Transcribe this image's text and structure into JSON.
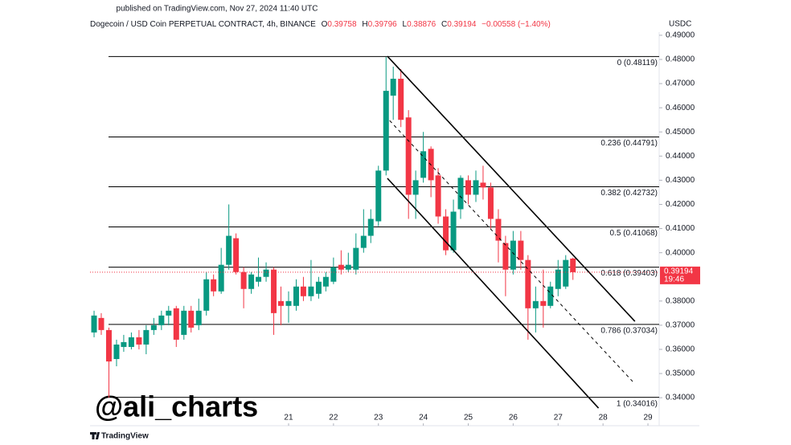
{
  "published": "published on TradingView.com, Nov 27, 2024 11:40 UTC",
  "watermark": "@ali_charts",
  "brand": "TradingView",
  "chart_data": {
    "type": "candlestick",
    "title": "Dogecoin / USD Coin PERPETUAL CONTRACT, 4h, BINANCE",
    "ohlc_header": {
      "o_label": "O",
      "open": "0.39758",
      "h_label": "H",
      "high": "0.39796",
      "l_label": "L",
      "low": "0.38876",
      "c_label": "C",
      "close": "0.39194",
      "change": "−0.00558 (−1.40%)"
    },
    "currency": "USDC",
    "last_price": 0.39194,
    "countdown": "19:46",
    "up_color": "#089981",
    "down_color": "#f23645",
    "x": [
      16.67,
      16.83,
      17,
      17.17,
      17.33,
      17.5,
      17.67,
      17.83,
      18,
      18.17,
      18.33,
      18.5,
      18.67,
      18.83,
      19,
      19.17,
      19.33,
      19.5,
      19.67,
      19.83,
      20,
      20.17,
      20.33,
      20.5,
      20.67,
      20.83,
      21,
      21.17,
      21.33,
      21.5,
      21.67,
      21.83,
      22,
      22.17,
      22.33,
      22.5,
      22.67,
      22.83,
      23,
      23.17,
      23.33,
      23.5,
      23.67,
      23.83,
      24,
      24.17,
      24.33,
      24.5,
      24.67,
      24.83,
      25,
      25.17,
      25.33,
      25.5,
      25.67,
      25.83,
      26,
      26.17,
      26.33,
      26.5,
      26.67,
      26.83,
      27,
      27.17,
      27.33
    ],
    "open": [
      0.367,
      0.373,
      0.368,
      0.356,
      0.361,
      0.361,
      0.365,
      0.362,
      0.368,
      0.37,
      0.374,
      0.377,
      0.366,
      0.376,
      0.37,
      0.376,
      0.389,
      0.384,
      0.395,
      0.406,
      0.392,
      0.385,
      0.388,
      0.39,
      0.393,
      0.38,
      0.378,
      0.378,
      0.386,
      0.382,
      0.383,
      0.386,
      0.388,
      0.395,
      0.393,
      0.393,
      0.402,
      0.407,
      0.413,
      0.434,
      0.465,
      0.472,
      0.456,
      0.424,
      0.431,
      0.443,
      0.432,
      0.415,
      0.401,
      0.418,
      0.43,
      0.424,
      0.429,
      0.427,
      0.414,
      0.404,
      0.393,
      0.405,
      0.397,
      0.377,
      0.38,
      0.378,
      0.385,
      0.386,
      0.39758
    ],
    "high": [
      0.376,
      0.375,
      0.369,
      0.364,
      0.366,
      0.367,
      0.368,
      0.37,
      0.373,
      0.376,
      0.378,
      0.378,
      0.378,
      0.378,
      0.381,
      0.392,
      0.391,
      0.402,
      0.42,
      0.408,
      0.394,
      0.392,
      0.398,
      0.396,
      0.394,
      0.386,
      0.384,
      0.389,
      0.39,
      0.397,
      0.39,
      0.392,
      0.398,
      0.401,
      0.4,
      0.408,
      0.418,
      0.418,
      0.436,
      0.481,
      0.477,
      0.476,
      0.459,
      0.434,
      0.45,
      0.444,
      0.435,
      0.418,
      0.422,
      0.432,
      0.432,
      0.434,
      0.436,
      0.429,
      0.418,
      0.407,
      0.409,
      0.409,
      0.399,
      0.386,
      0.393,
      0.388,
      0.397,
      0.399,
      0.39796
    ],
    "low": [
      0.365,
      0.366,
      0.34,
      0.353,
      0.359,
      0.36,
      0.36,
      0.358,
      0.366,
      0.368,
      0.37,
      0.361,
      0.364,
      0.367,
      0.368,
      0.374,
      0.382,
      0.383,
      0.393,
      0.391,
      0.377,
      0.383,
      0.386,
      0.388,
      0.366,
      0.37,
      0.371,
      0.376,
      0.38,
      0.38,
      0.381,
      0.384,
      0.387,
      0.391,
      0.392,
      0.391,
      0.4,
      0.404,
      0.411,
      0.432,
      0.455,
      0.452,
      0.414,
      0.414,
      0.429,
      0.423,
      0.412,
      0.399,
      0.4,
      0.414,
      0.42,
      0.421,
      0.422,
      0.41,
      0.396,
      0.382,
      0.391,
      0.393,
      0.364,
      0.367,
      0.369,
      0.377,
      0.382,
      0.385,
      0.38876
    ],
    "close": [
      0.374,
      0.368,
      0.355,
      0.362,
      0.363,
      0.365,
      0.362,
      0.368,
      0.37,
      0.374,
      0.376,
      0.364,
      0.376,
      0.369,
      0.376,
      0.389,
      0.384,
      0.395,
      0.407,
      0.392,
      0.385,
      0.391,
      0.39,
      0.393,
      0.375,
      0.378,
      0.38,
      0.386,
      0.382,
      0.386,
      0.388,
      0.39,
      0.394,
      0.393,
      0.395,
      0.402,
      0.407,
      0.414,
      0.434,
      0.467,
      0.472,
      0.455,
      0.424,
      0.43,
      0.442,
      0.43,
      0.415,
      0.401,
      0.417,
      0.431,
      0.424,
      0.43,
      0.427,
      0.414,
      0.405,
      0.393,
      0.405,
      0.397,
      0.377,
      0.38,
      0.378,
      0.386,
      0.393,
      0.397,
      0.39194
    ],
    "xlim": [
      16.58,
      29.25
    ],
    "xticks": [
      21,
      22,
      23,
      24,
      25,
      26,
      27,
      28,
      29
    ],
    "ylim": [
      0.3284,
      0.4913
    ],
    "yticks": [
      {
        "value": 0.34,
        "label": "0.34000"
      },
      {
        "value": 0.35,
        "label": "0.35000"
      },
      {
        "value": 0.36,
        "label": "0.36000"
      },
      {
        "value": 0.37,
        "label": "0.37000"
      },
      {
        "value": 0.38,
        "label": "0.38000"
      },
      {
        "value": 0.4,
        "label": "0.40000"
      },
      {
        "value": 0.41,
        "label": "0.41000"
      },
      {
        "value": 0.42,
        "label": "0.42000"
      },
      {
        "value": 0.43,
        "label": "0.43000"
      },
      {
        "value": 0.44,
        "label": "0.44000"
      },
      {
        "value": 0.45,
        "label": "0.45000"
      },
      {
        "value": 0.46,
        "label": "0.46000"
      },
      {
        "value": 0.47,
        "label": "0.47000"
      },
      {
        "value": 0.48,
        "label": "0.48000"
      },
      {
        "value": 0.49,
        "label": "0.49000"
      }
    ],
    "fib_levels": [
      {
        "label": "0 (0.48119)",
        "value": 0.48119
      },
      {
        "label": "0.236 (0.44791)",
        "value": 0.44791
      },
      {
        "label": "0.382 (0.42732)",
        "value": 0.42732
      },
      {
        "label": "0.5 (0.41068)",
        "value": 0.41068
      },
      {
        "label": "0.618 (0.39403)",
        "value": 0.39403
      },
      {
        "label": "0.786 (0.37034)",
        "value": 0.37034
      },
      {
        "label": "1 (0.34016)",
        "value": 0.34016
      }
    ],
    "trendlines": [
      {
        "x": [
          23.2,
          28.71
        ],
        "y": [
          0.4813,
          0.3716
        ],
        "dashed": false
      },
      {
        "x": [
          23.25,
          28.66
        ],
        "y": [
          0.4547,
          0.3467
        ],
        "dashed": true
      },
      {
        "x": [
          23.2,
          27.9
        ],
        "y": [
          0.4308,
          0.3357
        ],
        "dashed": false
      }
    ]
  }
}
